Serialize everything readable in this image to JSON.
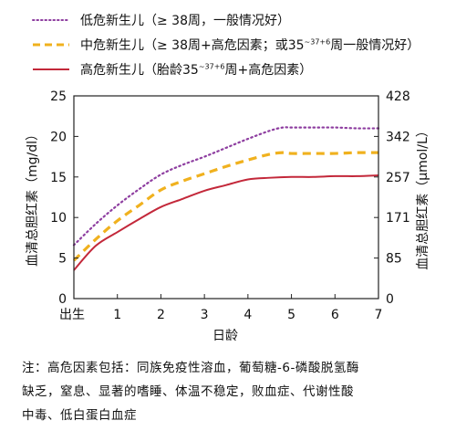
{
  "legend": [
    {
      "label_pre": "低危新生儿（≥ 38周，一般情况好）",
      "label_sup": "",
      "label_post": ""
    },
    {
      "label_pre": "中危新生儿（≥ 38周+高危因素；或35",
      "label_sup": "~37+6",
      "label_post": "周一般情况好）"
    },
    {
      "label_pre": "高危新生儿（胎龄35",
      "label_sup": "~37+6",
      "label_post": "周+高危因素）"
    }
  ],
  "note": {
    "line1": "注：高危因素包括：同族免疫性溶血，葡萄糖-6-磷酸脱氢酶",
    "line2": "缺乏，窒息、显著的嗜睡、体温不稳定，败血症、代谢性酸",
    "line3": "中毒、低白蛋白血症"
  },
  "chart_data": {
    "type": "line",
    "xlabel": "日龄",
    "ylabel": "血清总胆红素（mg/dl）",
    "ylabel_right": "血清总胆红素（μmol/L）",
    "x_ticks": [
      "出生",
      "1",
      "2",
      "3",
      "4",
      "5",
      "6",
      "7"
    ],
    "y_ticks": [
      "0",
      "5",
      "10",
      "15",
      "20",
      "25"
    ],
    "y_ticks_right": [
      "0",
      "85",
      "171",
      "257",
      "342",
      "428"
    ],
    "xlim": [
      0,
      7
    ],
    "ylim": [
      0,
      25
    ],
    "series": [
      {
        "name": "低危新生儿（≥ 38周，一般情况好）",
        "color": "#8e3ea0",
        "style": "dotted",
        "x": [
          0,
          0.5,
          1,
          1.5,
          2,
          2.5,
          3,
          3.5,
          4,
          4.5,
          4.8,
          5,
          5.5,
          6,
          6.5,
          7
        ],
        "y": [
          6.6,
          9.2,
          11.5,
          13.5,
          15.3,
          16.5,
          17.5,
          18.6,
          19.7,
          20.7,
          21.1,
          21.1,
          21.1,
          21.1,
          21.0,
          21.0
        ]
      },
      {
        "name": "中危新生儿（≥ 38周+高危因素；或35~37+6周一般情况好）",
        "color": "#f0b11e",
        "style": "dashed",
        "x": [
          0,
          0.5,
          1,
          1.5,
          2,
          2.5,
          3,
          3.5,
          4,
          4.5,
          4.8,
          5,
          5.5,
          6,
          6.5,
          7
        ],
        "y": [
          4.7,
          7.3,
          9.6,
          11.5,
          13.4,
          14.5,
          15.4,
          16.3,
          17.1,
          17.8,
          18.0,
          17.9,
          17.9,
          17.9,
          18.0,
          18.0
        ]
      },
      {
        "name": "高危新生儿（胎龄35~37+6周+高危因素）",
        "color": "#c3283a",
        "style": "solid",
        "x": [
          0,
          0.5,
          1,
          1.5,
          2,
          2.5,
          3,
          3.5,
          4,
          4.5,
          5,
          5.5,
          6,
          6.5,
          7
        ],
        "y": [
          3.5,
          6.5,
          8.2,
          9.8,
          11.3,
          12.3,
          13.3,
          14.0,
          14.7,
          14.9,
          15.0,
          15.0,
          15.1,
          15.1,
          15.2
        ]
      }
    ]
  }
}
